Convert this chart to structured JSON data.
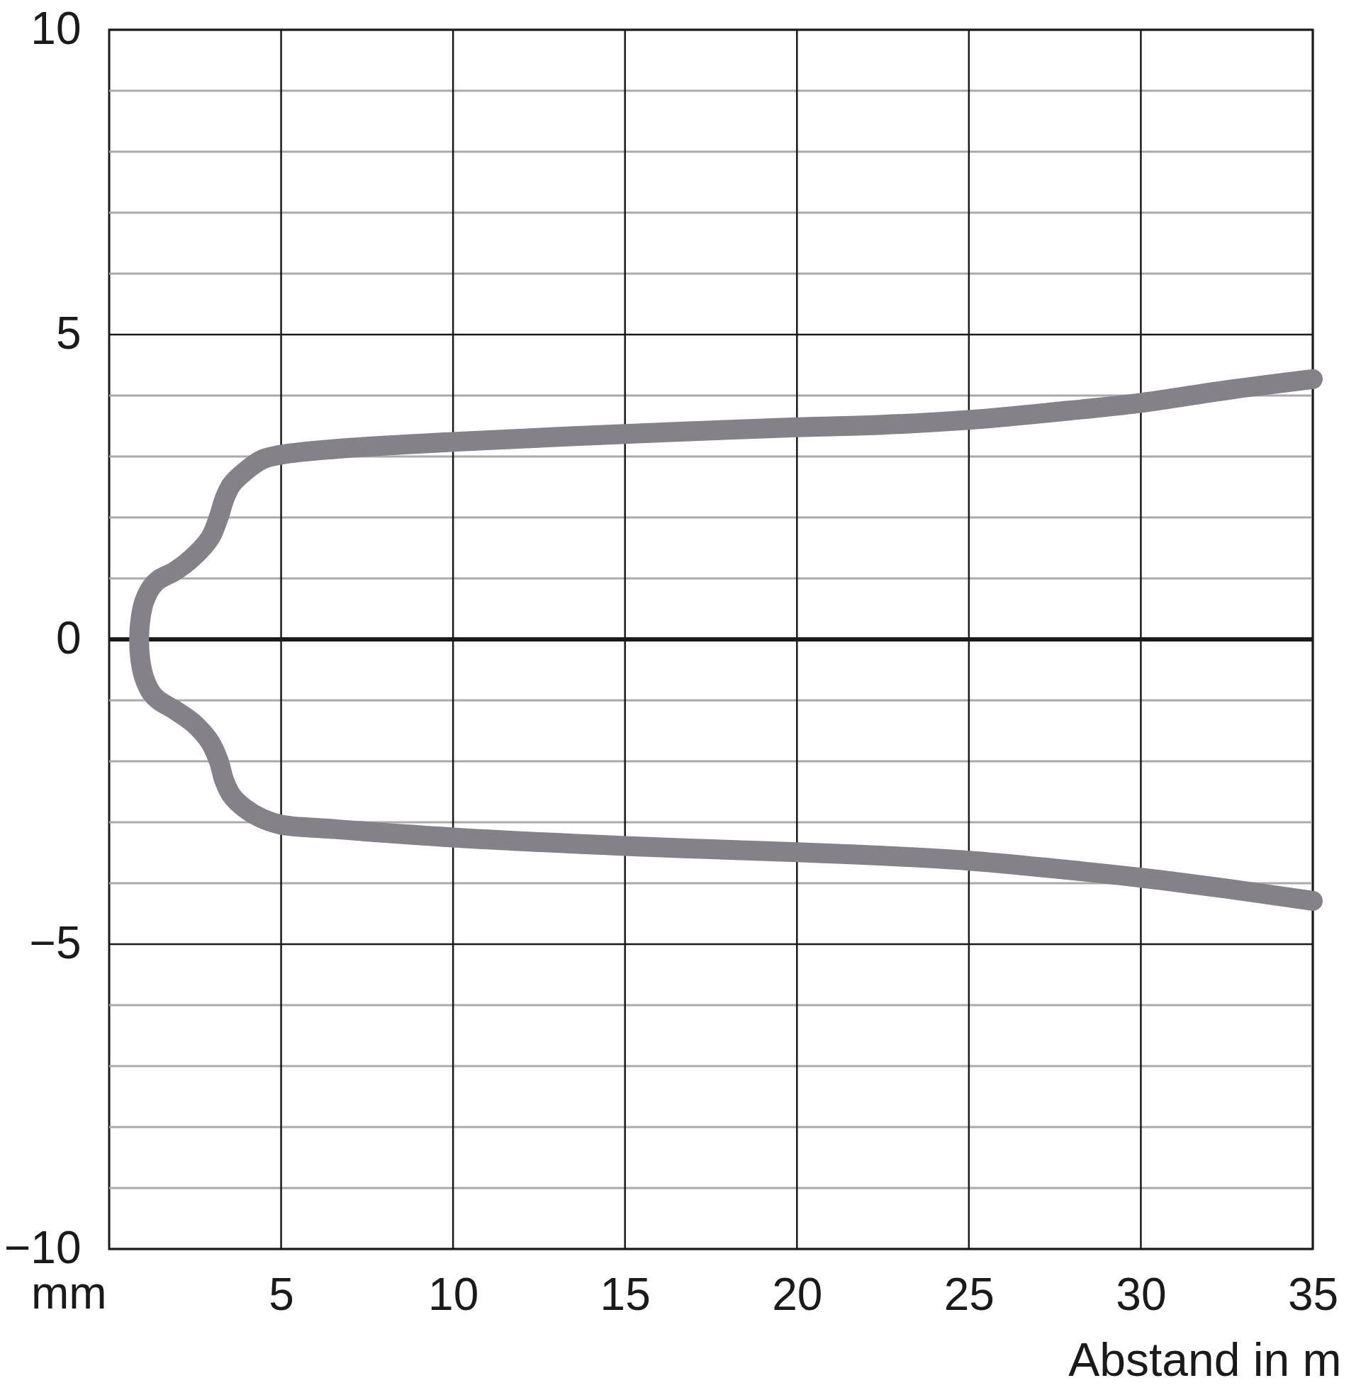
{
  "chart_data": {
    "type": "line",
    "xlabel": "Abstand in m",
    "ylabel": "mm",
    "x": [
      35,
      32.5,
      30,
      27.5,
      25,
      22.5,
      20,
      15,
      10,
      6.5,
      5,
      4.45,
      3.94,
      3.56,
      3.35,
      3.19,
      2.94,
      2.46,
      1.91,
      1.44,
      1.23,
      1.02,
      0.91,
      0.87,
      0.91,
      1.02,
      1.23,
      1.44,
      1.91,
      2.46,
      2.94,
      3.19,
      3.35,
      3.56,
      3.94,
      4.45,
      5,
      6.5,
      10,
      15,
      20,
      22.5,
      25,
      27.5,
      30,
      32.5,
      35
    ],
    "series": [
      {
        "color": "#848187",
        "values": [
          -4.29,
          -4.09,
          -3.91,
          -3.76,
          -3.63,
          -3.55,
          -3.49,
          -3.39,
          -3.25,
          -3.11,
          -3.04,
          -2.94,
          -2.77,
          -2.56,
          -2.32,
          -2.0,
          -1.69,
          -1.38,
          -1.16,
          -1.0,
          -0.88,
          -0.63,
          -0.35,
          0,
          0.33,
          0.62,
          0.86,
          0.98,
          1.12,
          1.36,
          1.67,
          2.01,
          2.3,
          2.54,
          2.75,
          2.95,
          3.03,
          3.12,
          3.24,
          3.37,
          3.48,
          3.52,
          3.6,
          3.73,
          3.88,
          4.09,
          4.27
        ]
      }
    ],
    "xlim": [
      0,
      35
    ],
    "ylim": [
      -10,
      10
    ],
    "xticks": [
      5,
      10,
      15,
      20,
      25,
      30,
      35
    ],
    "yticks": [
      {
        "value": -10,
        "label": "−10"
      },
      {
        "value": -9,
        "label": null
      },
      {
        "value": -8,
        "label": null
      },
      {
        "value": -7,
        "label": null
      },
      {
        "value": -6,
        "label": null
      },
      {
        "value": -5,
        "label": "−5"
      },
      {
        "value": -4,
        "label": null
      },
      {
        "value": -3,
        "label": null
      },
      {
        "value": -2,
        "label": null
      },
      {
        "value": -1,
        "label": null
      },
      0,
      {
        "value": 1,
        "label": null
      },
      {
        "value": 2,
        "label": null
      },
      {
        "value": 3,
        "label": null
      },
      {
        "value": 4,
        "label": null
      },
      5,
      {
        "value": 6,
        "label": null
      },
      {
        "value": 7,
        "label": null
      },
      {
        "value": 8,
        "label": null
      },
      {
        "value": 9,
        "label": null
      },
      10
    ],
    "grid": true,
    "ref_lines": [
      {
        "axis": "y",
        "value": 0,
        "color": "#1a1a1a"
      }
    ],
    "line_style": "solid"
  }
}
